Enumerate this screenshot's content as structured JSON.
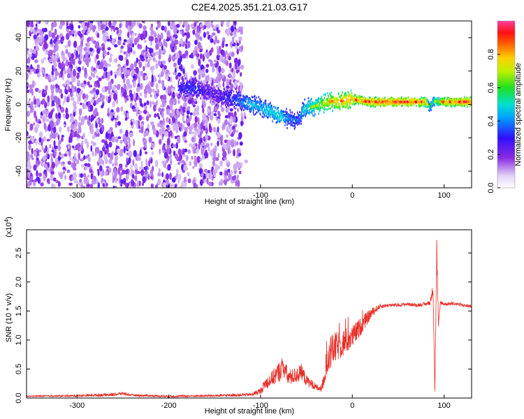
{
  "title": "C2E4.2025.351.21.03.G17",
  "colors": {
    "snr_line": "#e8302a",
    "spectral_low": "#e6d8f5",
    "spectral_mid": "#7a1ae0",
    "ridge_green": "#17d43a",
    "ridge_cyan": "#18c8c8",
    "ridge_red": "#e8202a"
  },
  "chart_data": [
    {
      "type": "heatmap",
      "name": "spectrogram",
      "xlabel": "Height of straight line (km)",
      "ylabel": "Frequency (Hz)",
      "xlim": [
        -355,
        130
      ],
      "ylim": [
        -50,
        50
      ],
      "xticks": [
        -300,
        -200,
        -100,
        0,
        100
      ],
      "xtick_labels": [
        "-300",
        "-200",
        "-100",
        "0",
        "100"
      ],
      "yticks": [
        -40,
        -20,
        0,
        20,
        40
      ],
      "ytick_labels": [
        "-40",
        "-20",
        "0",
        "20",
        "40"
      ],
      "colorbar": {
        "label": "Normalized spectral amplitude",
        "range": [
          0,
          1
        ],
        "ticks": [
          0.0,
          0.2,
          0.4,
          0.6,
          0.8
        ],
        "tick_labels": [
          "0.0",
          "0.2",
          "0.4",
          "0.6",
          "0.8"
        ],
        "colormap": "rainbow: white-violet-blue-cyan-green-yellow-orange-red-pink"
      },
      "noise_region_x": [
        -355,
        -120
      ],
      "ridge": {
        "x": [
          -190,
          -175,
          -160,
          -150,
          -140,
          -130,
          -120,
          -110,
          -100,
          -90,
          -80,
          -70,
          -60,
          -55,
          -50,
          -40,
          -30,
          -20,
          -10,
          0,
          10,
          20,
          40,
          60,
          80,
          84,
          88,
          100,
          120,
          130
        ],
        "freq": [
          9,
          10,
          8,
          6,
          4,
          3,
          1,
          0,
          -2,
          -4,
          -7,
          -9,
          -10,
          -4,
          -2,
          -1,
          1,
          2,
          2,
          3,
          2,
          1.5,
          1.5,
          1.5,
          1.5,
          -2,
          2,
          1.5,
          1.5,
          1.5
        ],
        "amplitude": [
          0.35,
          0.4,
          0.3,
          0.3,
          0.35,
          0.4,
          0.45,
          0.5,
          0.5,
          0.55,
          0.55,
          0.45,
          0.4,
          0.5,
          0.55,
          0.65,
          0.75,
          0.8,
          0.85,
          0.85,
          0.88,
          0.9,
          0.92,
          0.9,
          0.85,
          0.5,
          0.6,
          0.85,
          0.9,
          0.9
        ]
      }
    },
    {
      "type": "line",
      "name": "snr",
      "xlabel": "Height of straight line (km)",
      "ylabel": "SNR (10 * v/v)",
      "y_multiplier_label": "(x10",
      "y_multiplier_exp": "4",
      "y_multiplier_close": ")",
      "xlim": [
        -355,
        130
      ],
      "ylim": [
        0,
        2.9
      ],
      "xticks": [
        -300,
        -200,
        -100,
        0,
        100
      ],
      "xtick_labels": [
        "-300",
        "-200",
        "-100",
        "0",
        "100"
      ],
      "yticks": [
        0.0,
        0.5,
        1.0,
        1.5,
        2.0,
        2.5
      ],
      "ytick_labels": [
        "0.0",
        "0.5",
        "1.0",
        "1.5",
        "2.0",
        "2.5"
      ],
      "series": [
        {
          "name": "SNR",
          "x": [
            -355,
            -300,
            -260,
            -250,
            -240,
            -200,
            -150,
            -110,
            -100,
            -95,
            -90,
            -80,
            -75,
            -70,
            -60,
            -55,
            -50,
            -40,
            -35,
            -30,
            -28,
            -25,
            -20,
            -15,
            -10,
            -5,
            0,
            5,
            10,
            15,
            20,
            25,
            30,
            40,
            50,
            60,
            70,
            80,
            85,
            88,
            90,
            92,
            94,
            96,
            100,
            110,
            120,
            130
          ],
          "y": [
            0.03,
            0.04,
            0.06,
            0.08,
            0.05,
            0.03,
            0.04,
            0.06,
            0.12,
            0.25,
            0.3,
            0.45,
            0.55,
            0.35,
            0.4,
            0.45,
            0.3,
            0.2,
            0.15,
            0.3,
            0.7,
            0.75,
            0.85,
            0.9,
            0.95,
            1.0,
            1.05,
            1.15,
            1.25,
            1.35,
            1.45,
            1.52,
            1.58,
            1.6,
            1.6,
            1.62,
            1.6,
            1.62,
            1.65,
            1.9,
            0.1,
            2.6,
            1.2,
            1.65,
            1.62,
            1.63,
            1.6,
            1.58
          ],
          "noise_amp": [
            0.01,
            0.02,
            0.03,
            0.03,
            0.02,
            0.02,
            0.02,
            0.03,
            0.06,
            0.1,
            0.12,
            0.18,
            0.2,
            0.14,
            0.14,
            0.14,
            0.1,
            0.06,
            0.05,
            0.15,
            0.3,
            0.3,
            0.28,
            0.25,
            0.25,
            0.22,
            0.2,
            0.18,
            0.15,
            0.12,
            0.1,
            0.06,
            0.04,
            0.03,
            0.03,
            0.03,
            0.03,
            0.03,
            0.05,
            0.1,
            0.05,
            0.2,
            0.1,
            0.04,
            0.03,
            0.03,
            0.03,
            0.03
          ]
        }
      ]
    }
  ]
}
